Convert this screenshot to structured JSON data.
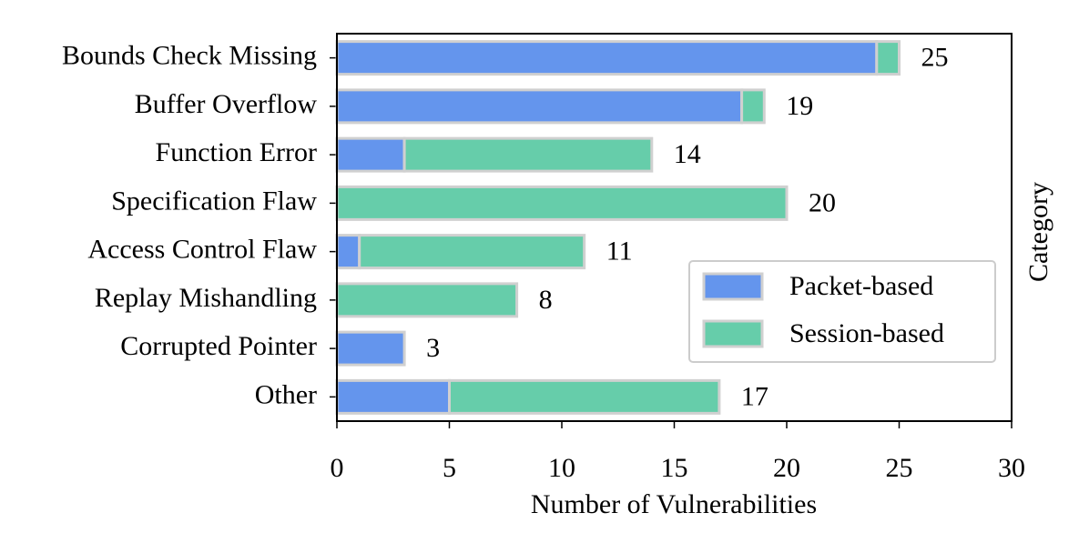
{
  "chart_data": {
    "type": "bar",
    "orientation": "horizontal",
    "stacked": true,
    "categories": [
      "Bounds Check Missing",
      "Buffer Overflow",
      "Function Error",
      "Specification Flaw",
      "Access Control Flaw",
      "Replay Mishandling",
      "Corrupted Pointer",
      "Other"
    ],
    "series": [
      {
        "name": "Packet-based",
        "color": "#6495ed",
        "values": [
          24,
          18,
          3,
          0,
          1,
          0,
          3,
          5
        ]
      },
      {
        "name": "Session-based",
        "color": "#66cdaa",
        "values": [
          1,
          1,
          11,
          20,
          10,
          8,
          0,
          12
        ]
      }
    ],
    "totals": [
      25,
      19,
      14,
      20,
      11,
      8,
      3,
      17
    ],
    "xlim": [
      0,
      30
    ],
    "xticks": [
      0,
      5,
      10,
      15,
      20,
      25,
      30
    ],
    "xlabel": "Number of Vulnerabilities",
    "ylabel": "Category",
    "legend": "lower right"
  }
}
